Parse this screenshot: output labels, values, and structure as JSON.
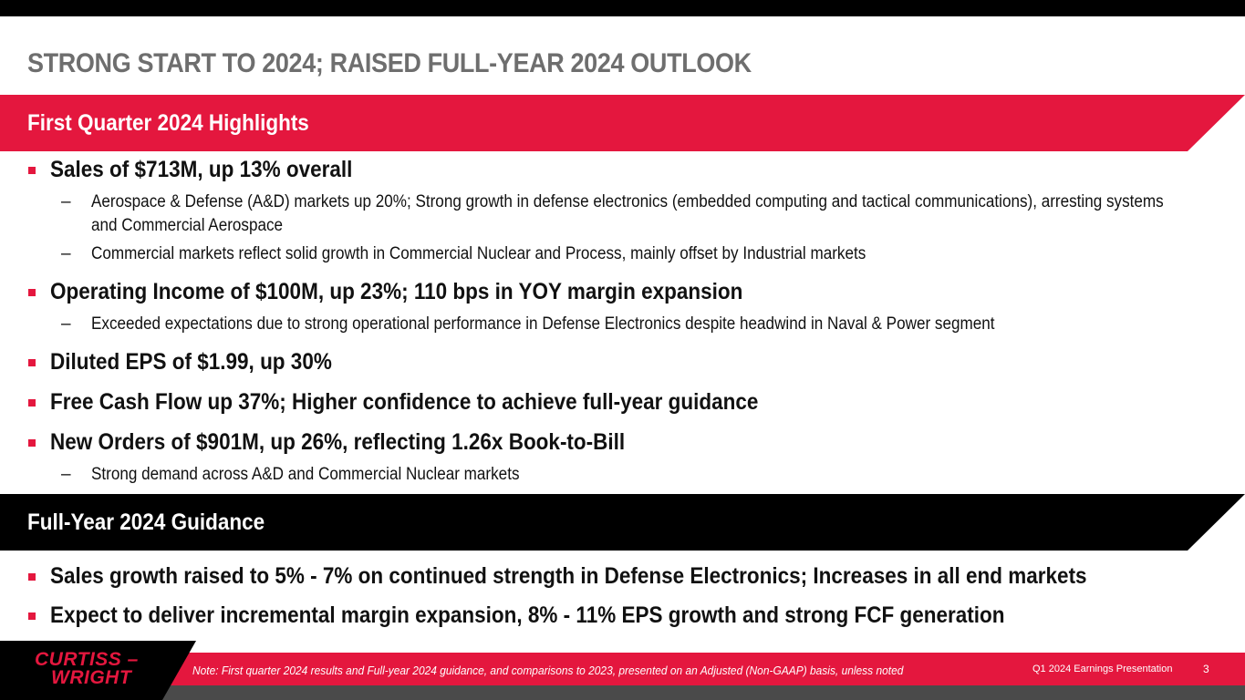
{
  "slide": {
    "title": "STRONG START TO 2024; RAISED FULL-YEAR 2024 OUTLOOK"
  },
  "highlights": {
    "heading": "First Quarter 2024 Highlights",
    "items": [
      {
        "text": "Sales of $713M, up 13% overall",
        "subs": [
          "Aerospace & Defense (A&D) markets up 20%; Strong growth in defense electronics (embedded computing and tactical communications), arresting systems and Commercial Aerospace",
          "Commercial markets reflect solid growth in Commercial Nuclear and Process, mainly offset by Industrial markets"
        ]
      },
      {
        "text": "Operating Income of $100M, up 23%; 110 bps in YOY margin expansion",
        "subs": [
          "Exceeded expectations due to strong operational performance in Defense Electronics despite headwind in Naval & Power segment"
        ]
      },
      {
        "text": "Diluted EPS of $1.99, up 30%"
      },
      {
        "text": "Free Cash Flow up 37%; Higher confidence to achieve full-year guidance"
      },
      {
        "text": "New Orders of $901M, up 26%, reflecting 1.26x Book-to-Bill",
        "subs": [
          "Strong demand across A&D and Commercial Nuclear markets"
        ]
      }
    ]
  },
  "guidance": {
    "heading": "Full-Year 2024 Guidance",
    "items": [
      {
        "text": "Sales growth raised to 5% - 7% on continued strength in Defense Electronics; Increases in all end markets"
      },
      {
        "text": "Expect to deliver incremental margin expansion, 8% - 11% EPS growth and strong FCF generation"
      }
    ]
  },
  "footer": {
    "logo_line1": "CURTISS –",
    "logo_line2": "WRIGHT",
    "note": "Note: First quarter 2024 results and Full-year 2024 guidance, and comparisons to 2023, presented on an Adjusted (Non-GAAP) basis, unless noted",
    "presentation": "Q1 2024 Earnings Presentation",
    "page": "3"
  },
  "colors": {
    "accent_red": "#e4173e",
    "title_gray": "#6e6e6e",
    "band_black": "#000000"
  }
}
